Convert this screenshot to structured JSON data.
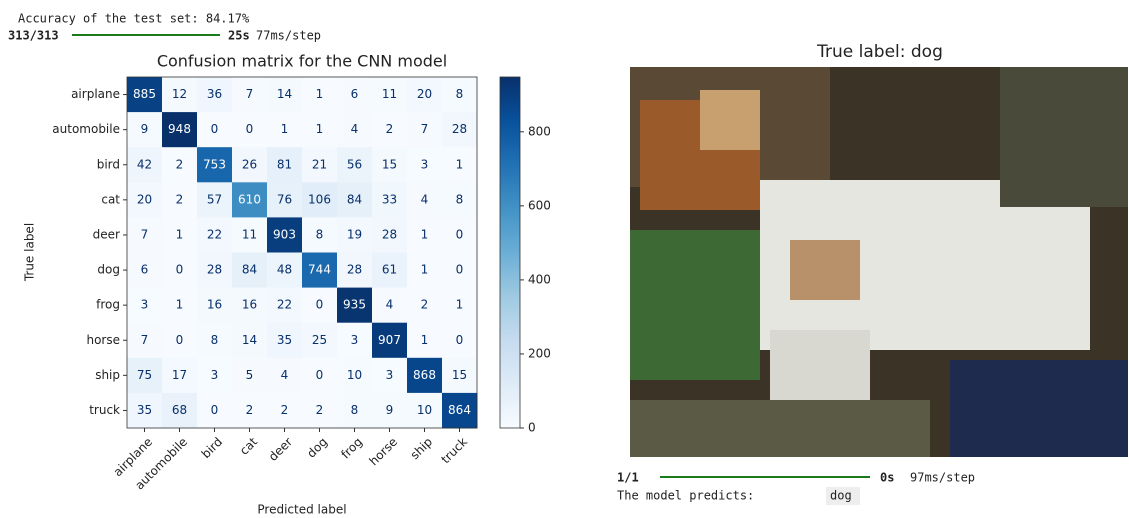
{
  "output_top": {
    "accuracy_line": "Accuracy of the test set: 84.17%",
    "steps": "313/313",
    "time": "25s",
    "rate": "77ms/step"
  },
  "chart_data": {
    "type": "heatmap",
    "title": "Confusion matrix for the CNN model",
    "x_label": "Predicted label",
    "y_label": "True label",
    "x_categories": [
      "airplane",
      "automobile",
      "bird",
      "cat",
      "deer",
      "dog",
      "frog",
      "horse",
      "ship",
      "truck"
    ],
    "y_categories": [
      "airplane",
      "automobile",
      "bird",
      "cat",
      "deer",
      "dog",
      "frog",
      "horse",
      "ship",
      "truck"
    ],
    "values": [
      [
        885,
        12,
        36,
        7,
        14,
        1,
        6,
        11,
        20,
        8
      ],
      [
        9,
        948,
        0,
        0,
        1,
        1,
        4,
        2,
        7,
        28
      ],
      [
        42,
        2,
        753,
        26,
        81,
        21,
        56,
        15,
        3,
        1
      ],
      [
        20,
        2,
        57,
        610,
        76,
        106,
        84,
        33,
        4,
        8
      ],
      [
        7,
        1,
        22,
        11,
        903,
        8,
        19,
        28,
        1,
        0
      ],
      [
        6,
        0,
        28,
        84,
        48,
        744,
        28,
        61,
        1,
        0
      ],
      [
        3,
        1,
        16,
        16,
        22,
        0,
        935,
        4,
        2,
        1
      ],
      [
        7,
        0,
        8,
        14,
        35,
        25,
        3,
        907,
        1,
        0
      ],
      [
        75,
        17,
        3,
        5,
        4,
        0,
        10,
        3,
        868,
        15
      ],
      [
        35,
        68,
        0,
        2,
        2,
        2,
        8,
        9,
        10,
        864
      ]
    ],
    "colormap": "Blues",
    "clim": [
      0,
      948
    ],
    "cticks": [
      0,
      200,
      400,
      600,
      800
    ]
  },
  "image_panel": {
    "title": "True label: dog"
  },
  "output_bottom": {
    "steps": "1/1",
    "time": "0s",
    "rate": "97ms/step",
    "prediction_label": "The model predicts:",
    "prediction": "dog"
  }
}
